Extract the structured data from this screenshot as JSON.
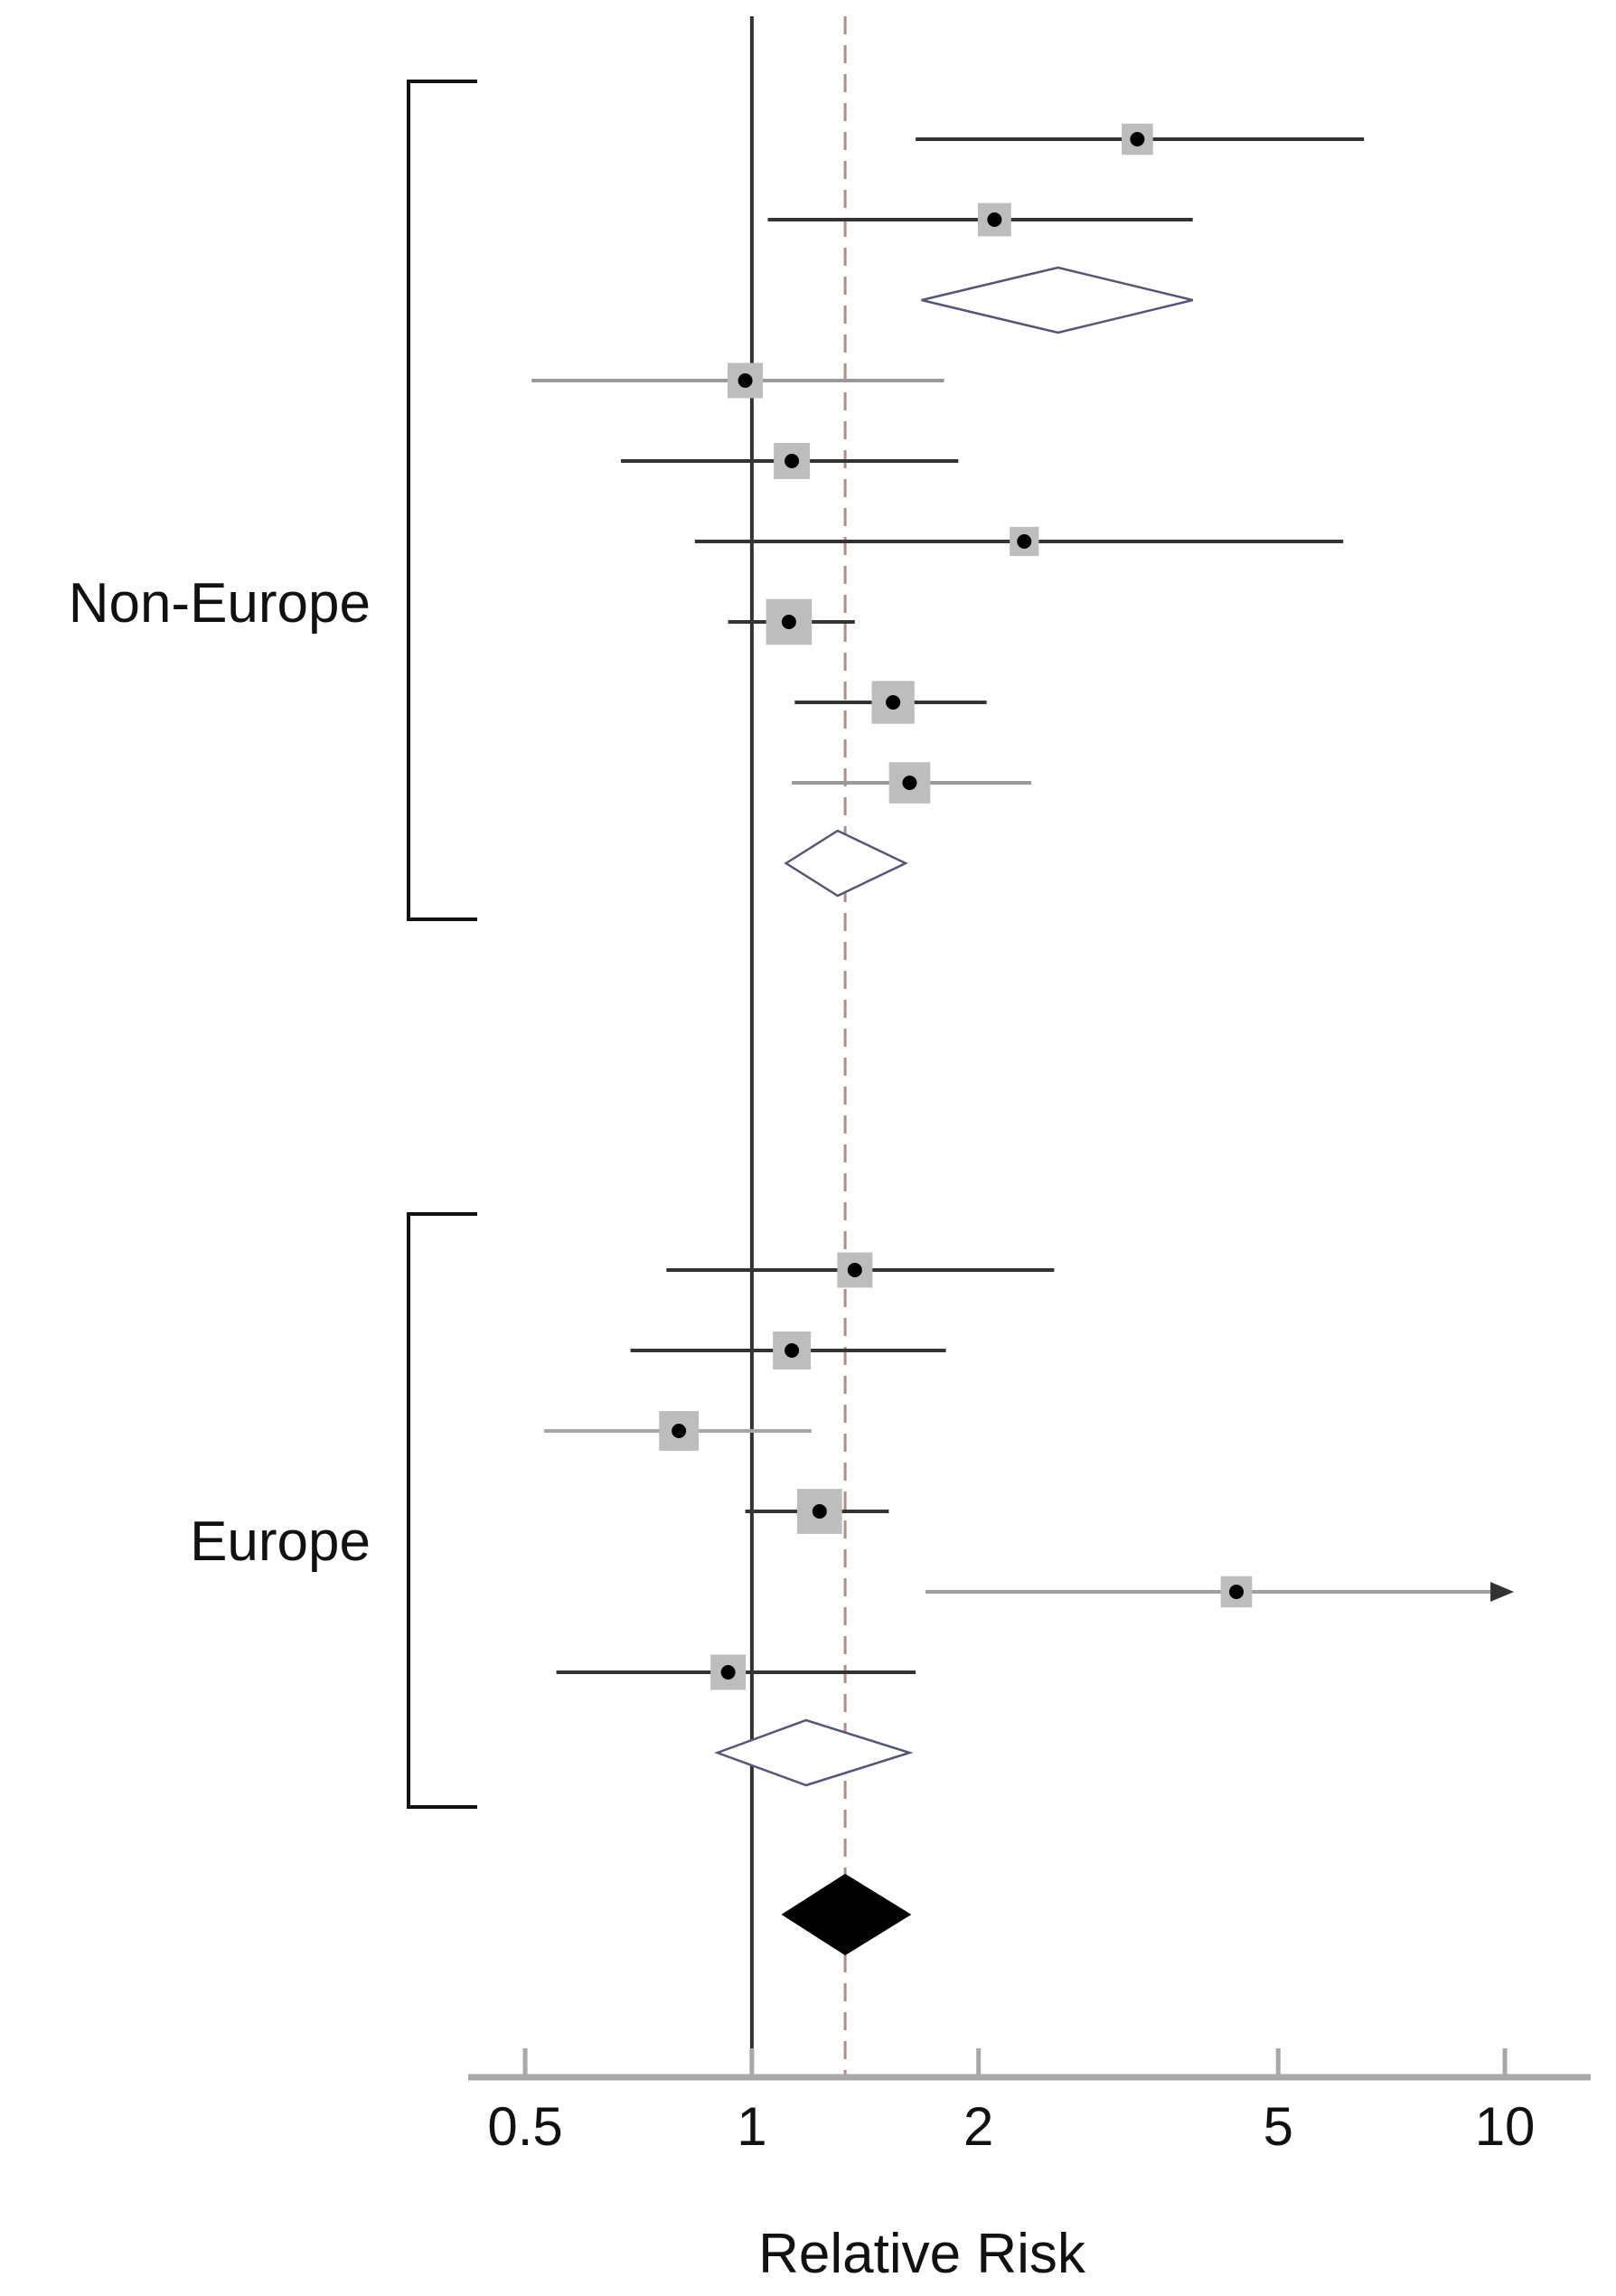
{
  "chart_data": {
    "type": "forest",
    "xlabel": "Relative Risk",
    "x_scale": "log",
    "xlim": [
      0.42,
      13
    ],
    "x_ticks": [
      {
        "value": 0.5,
        "label": "0.5"
      },
      {
        "value": 1,
        "label": "1"
      },
      {
        "value": 2,
        "label": "2"
      },
      {
        "value": 5,
        "label": "5"
      },
      {
        "value": 10,
        "label": "10"
      }
    ],
    "reference_line": 1,
    "overall_dashed_line": 1.33,
    "groups": [
      {
        "name": "Non-Europe",
        "studies": [
          {
            "rr": 3.25,
            "lo": 1.65,
            "hi": 6.5,
            "weight": 0.75,
            "ci_color": "#333333"
          },
          {
            "rr": 2.1,
            "lo": 1.05,
            "hi": 3.85,
            "weight": 0.85,
            "ci_color": "#333333"
          },
          {
            "rr": 0.98,
            "lo": 0.51,
            "hi": 1.8,
            "weight": 0.95,
            "ci_color": "#9a9a9a"
          },
          {
            "rr": 1.13,
            "lo": 0.67,
            "hi": 1.88,
            "weight": 1.0,
            "ci_color": "#333333"
          },
          {
            "rr": 2.3,
            "lo": 0.84,
            "hi": 6.1,
            "weight": 0.65,
            "ci_color": "#333333"
          },
          {
            "rr": 1.12,
            "lo": 0.93,
            "hi": 1.37,
            "weight": 1.6,
            "ci_color": "#333333"
          },
          {
            "rr": 1.54,
            "lo": 1.14,
            "hi": 2.05,
            "weight": 1.4,
            "ci_color": "#333333"
          },
          {
            "rr": 1.62,
            "lo": 1.13,
            "hi": 2.35,
            "weight": 1.3,
            "ci_color": "#999999"
          }
        ],
        "summary": [
          {
            "rr": 2.55,
            "lo": 1.68,
            "hi": 3.85
          },
          {
            "rr": 1.3,
            "lo": 1.11,
            "hi": 1.6
          }
        ]
      },
      {
        "name": "Europe",
        "studies": [
          {
            "rr": 1.37,
            "lo": 0.77,
            "hi": 2.52,
            "weight": 0.95,
            "ci_color": "#333333"
          },
          {
            "rr": 1.13,
            "lo": 0.69,
            "hi": 1.81,
            "weight": 1.1,
            "ci_color": "#333333"
          },
          {
            "rr": 0.8,
            "lo": 0.53,
            "hi": 1.2,
            "weight": 1.2,
            "ci_color": "#a5a5a5"
          },
          {
            "rr": 1.23,
            "lo": 0.98,
            "hi": 1.52,
            "weight": 1.55,
            "ci_color": "#333333"
          },
          {
            "rr": 4.4,
            "lo": 1.7,
            "hi": 10.0,
            "weight": 0.75,
            "ci_color": "#a0a0a0",
            "arrow_right": true
          },
          {
            "rr": 0.93,
            "lo": 0.55,
            "hi": 1.65,
            "weight": 0.95,
            "ci_color": "#333333"
          }
        ],
        "summary": [
          {
            "rr": 1.18,
            "lo": 0.9,
            "hi": 1.62
          }
        ]
      }
    ],
    "overall": {
      "rr": 1.33,
      "lo": 1.1,
      "hi": 1.62
    }
  },
  "colors": {
    "axis": "#a8a8a8",
    "ref_line": "#333333",
    "dashed_line": "#b58a8a",
    "box": "#bdbdbd",
    "point": "#000000",
    "diamond_open": "#55557a",
    "diamond_filled": "#000000",
    "bracket": "#111111"
  }
}
